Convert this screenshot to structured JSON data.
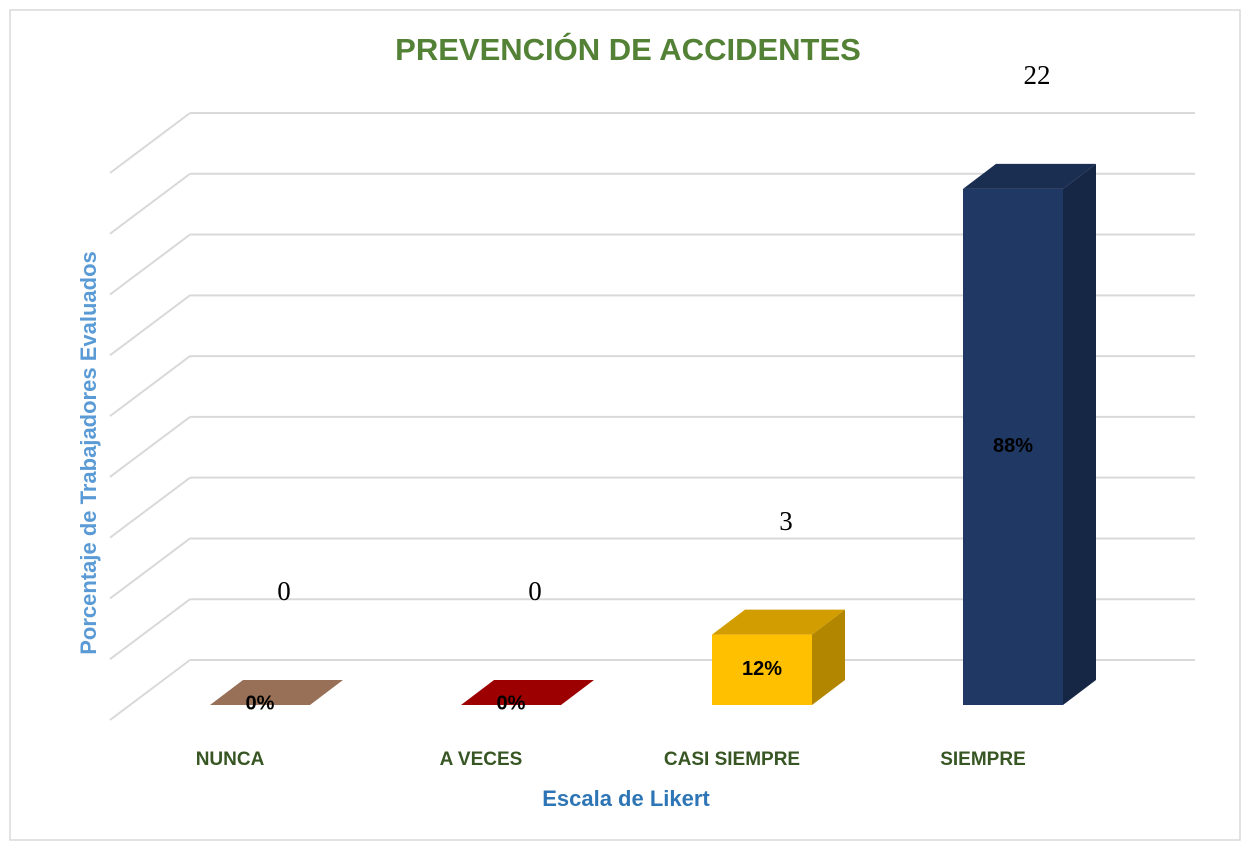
{
  "chart_data": {
    "type": "bar3d",
    "title": "PREVENCIÓN DE ACCIDENTES",
    "x_label": "Escala de Likert",
    "y_label": "Porcentaje de Trabajadores Evaluados",
    "categories": [
      "NUNCA",
      "A VECES",
      "CASI SIEMPRE",
      "SIEMPRE"
    ],
    "values": [
      0,
      0,
      12,
      88
    ],
    "value_labels": [
      "0%",
      "0%",
      "12%",
      "88%"
    ],
    "counts": [
      0,
      0,
      3,
      22
    ],
    "colors": [
      "#b9896b",
      "#c00000",
      "#ffc000",
      "#203864"
    ],
    "ylim": [
      0,
      90
    ],
    "yticks": [
      0,
      10,
      20,
      30,
      40,
      50,
      60,
      70,
      80,
      90
    ],
    "grid": true
  }
}
